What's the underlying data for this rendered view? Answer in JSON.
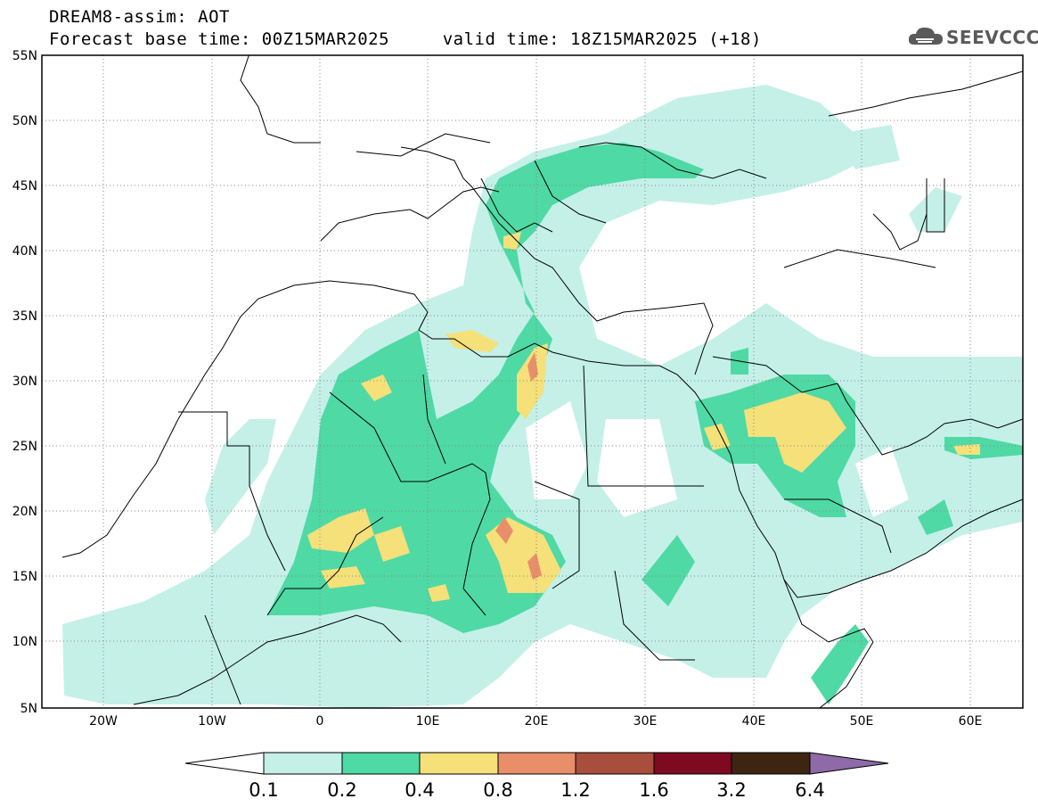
{
  "header": {
    "title_line1": "DREAM8-assim: AOT",
    "title_line2": "Forecast base time: 00Z15MAR2025     valid time: 18Z15MAR2025 (+18)"
  },
  "logo": {
    "text": "SEEVCCC"
  },
  "map": {
    "lat_labels": [
      "55N",
      "50N",
      "45N",
      "40N",
      "35N",
      "30N",
      "25N",
      "20N",
      "15N",
      "10N",
      "5N"
    ],
    "lon_labels": [
      "20W",
      "10W",
      "0",
      "10E",
      "20E",
      "30E",
      "40E",
      "50E",
      "60E"
    ],
    "lon_range": [
      -25,
      65
    ],
    "lat_range": [
      5,
      55
    ]
  },
  "colorbar": {
    "levels": [
      "0.1",
      "0.2",
      "0.4",
      "0.8",
      "1.2",
      "1.6",
      "3.2",
      "6.4"
    ],
    "colors": [
      "#ffffff",
      "#c4f0e8",
      "#4fd9a5",
      "#f5e07a",
      "#e88f6a",
      "#a84e3c",
      "#7d0a20",
      "#3d2512",
      "#8e6aa8"
    ]
  }
}
